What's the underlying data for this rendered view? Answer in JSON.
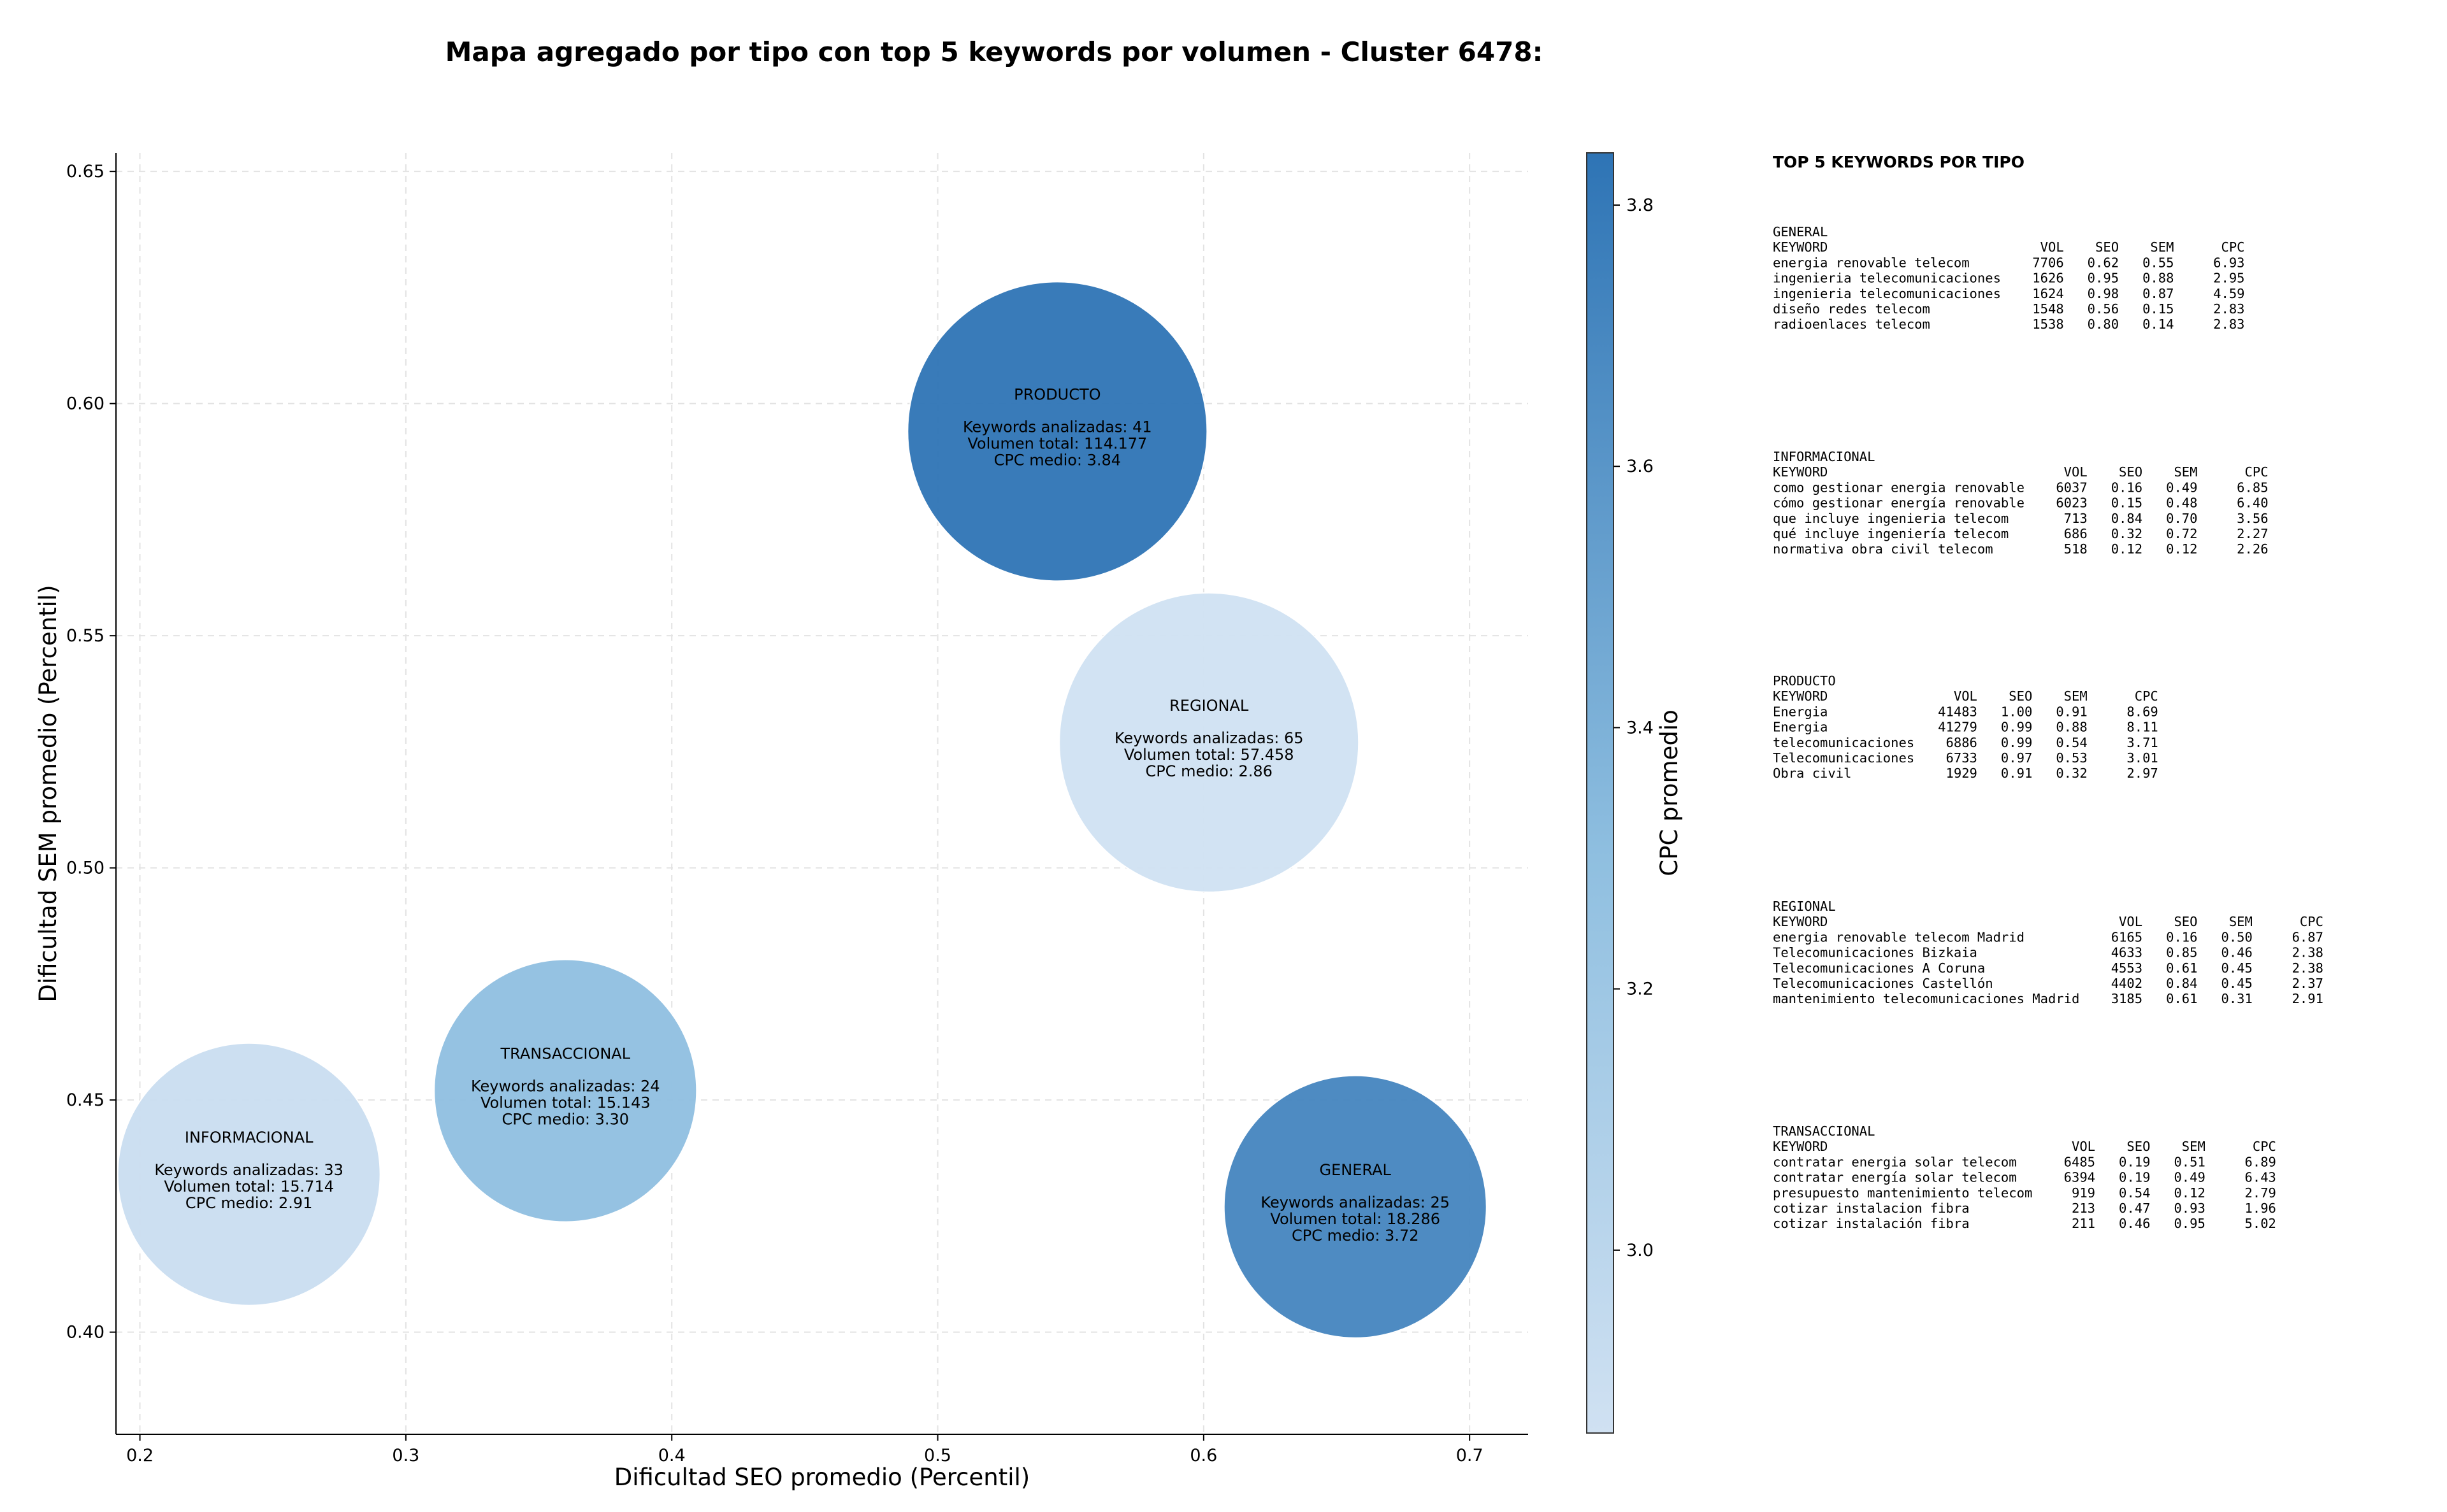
{
  "chart_data": {
    "type": "scatter",
    "title": "Mapa agregado por tipo con top 5 keywords por volumen - Cluster 6478:",
    "xlabel": "Dificultad SEO promedio (Percentil)",
    "ylabel": "Dificultad SEM promedio (Percentil)",
    "xlim": [
      0.191,
      0.722
    ],
    "ylim": [
      0.378,
      0.654
    ],
    "xticks": [
      0.2,
      0.3,
      0.4,
      0.5,
      0.6,
      0.7
    ],
    "yticks": [
      0.4,
      0.45,
      0.5,
      0.55,
      0.6,
      0.65
    ],
    "grid": true,
    "colorbar": {
      "label": "CPC promedio",
      "range": [
        2.86,
        3.84
      ],
      "ticks": [
        3.0,
        3.2,
        3.4,
        3.6,
        3.8
      ],
      "color_low": "#d0e1f2",
      "color_high": "#2e74b5"
    },
    "bubble_lines": {
      "keywords": "Keywords analizadas:",
      "volume": "Volumen total:",
      "cpc": "CPC medio:"
    },
    "points": [
      {
        "label": "PRODUCTO",
        "x": 0.545,
        "y": 0.594,
        "keywords": 41,
        "volume": "114.177",
        "volume_value": 114177,
        "cpc": "3.84",
        "cpc_value": 3.84
      },
      {
        "label": "REGIONAL",
        "x": 0.602,
        "y": 0.527,
        "keywords": 65,
        "volume": "57.458",
        "volume_value": 57458,
        "cpc": "2.86",
        "cpc_value": 2.86
      },
      {
        "label": "TRANSACCIONAL",
        "x": 0.36,
        "y": 0.452,
        "keywords": 24,
        "volume": "15.143",
        "volume_value": 15143,
        "cpc": "3.30",
        "cpc_value": 3.3
      },
      {
        "label": "INFORMACIONAL",
        "x": 0.241,
        "y": 0.434,
        "keywords": 33,
        "volume": "15.714",
        "volume_value": 15714,
        "cpc": "2.91",
        "cpc_value": 2.91
      },
      {
        "label": "GENERAL",
        "x": 0.657,
        "y": 0.427,
        "keywords": 25,
        "volume": "18.286",
        "volume_value": 18286,
        "cpc": "3.72",
        "cpc_value": 3.72
      }
    ],
    "table": {
      "heading": "TOP 5 KEYWORDS POR TIPO",
      "columns": [
        "KEYWORD",
        "VOL",
        "SEO",
        "SEM",
        "CPC"
      ],
      "groups": [
        {
          "name": "GENERAL",
          "rows": [
            [
              "energia renovable telecom",
              "7706",
              "0.62",
              "0.55",
              "6.93"
            ],
            [
              "ingenieria telecomunicaciones",
              "1626",
              "0.95",
              "0.88",
              "2.95"
            ],
            [
              "ingenieria telecomunicaciones",
              "1624",
              "0.98",
              "0.87",
              "4.59"
            ],
            [
              "diseño redes telecom",
              "1548",
              "0.56",
              "0.15",
              "2.83"
            ],
            [
              "radioenlaces telecom",
              "1538",
              "0.80",
              "0.14",
              "2.83"
            ]
          ]
        },
        {
          "name": "INFORMACIONAL",
          "rows": [
            [
              "como gestionar energia renovable",
              "6037",
              "0.16",
              "0.49",
              "6.85"
            ],
            [
              "cómo gestionar energía renovable",
              "6023",
              "0.15",
              "0.48",
              "6.40"
            ],
            [
              "que incluye ingenieria telecom",
              "713",
              "0.84",
              "0.70",
              "3.56"
            ],
            [
              "qué incluye ingeniería telecom",
              "686",
              "0.32",
              "0.72",
              "2.27"
            ],
            [
              "normativa obra civil telecom",
              "518",
              "0.12",
              "0.12",
              "2.26"
            ]
          ]
        },
        {
          "name": "PRODUCTO",
          "rows": [
            [
              "Energia",
              "41483",
              "1.00",
              "0.91",
              "8.69"
            ],
            [
              "Energia",
              "41279",
              "0.99",
              "0.88",
              "8.11"
            ],
            [
              "telecomunicaciones",
              "6886",
              "0.99",
              "0.54",
              "3.71"
            ],
            [
              "Telecomunicaciones",
              "6733",
              "0.97",
              "0.53",
              "3.01"
            ],
            [
              "Obra civil",
              "1929",
              "0.91",
              "0.32",
              "2.97"
            ]
          ]
        },
        {
          "name": "REGIONAL",
          "rows": [
            [
              "energia renovable telecom Madrid",
              "6165",
              "0.16",
              "0.50",
              "6.87"
            ],
            [
              "Telecomunicaciones Bizkaia",
              "4633",
              "0.85",
              "0.46",
              "2.38"
            ],
            [
              "Telecomunicaciones A Coruna",
              "4553",
              "0.61",
              "0.45",
              "2.38"
            ],
            [
              "Telecomunicaciones Castellón",
              "4402",
              "0.84",
              "0.45",
              "2.37"
            ],
            [
              "mantenimiento telecomunicaciones Madrid",
              "3185",
              "0.61",
              "0.31",
              "2.91"
            ]
          ]
        },
        {
          "name": "TRANSACCIONAL",
          "rows": [
            [
              "contratar energia solar telecom",
              "6485",
              "0.19",
              "0.51",
              "6.89"
            ],
            [
              "contratar energía solar telecom",
              "6394",
              "0.19",
              "0.49",
              "6.43"
            ],
            [
              "presupuesto mantenimiento telecom",
              "919",
              "0.54",
              "0.12",
              "2.79"
            ],
            [
              "cotizar instalacion fibra",
              "213",
              "0.47",
              "0.93",
              "1.96"
            ],
            [
              "cotizar instalación fibra",
              "211",
              "0.46",
              "0.95",
              "5.02"
            ]
          ]
        }
      ]
    }
  }
}
